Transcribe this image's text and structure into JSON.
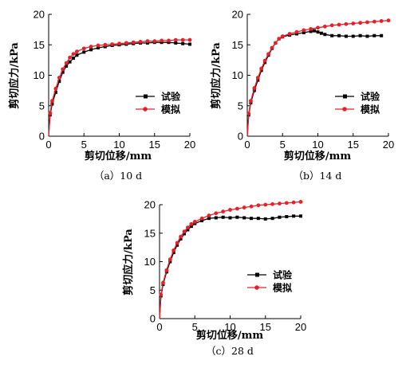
{
  "chart_data": [
    {
      "type": "line",
      "caption": "（a）10 d",
      "xlabel": "剪切位移/mm",
      "ylabel": "剪切应力/kPa",
      "xlim": [
        0,
        20
      ],
      "ylim": [
        0,
        20
      ],
      "xticks": [
        "0",
        "5",
        "10",
        "15",
        "20"
      ],
      "yticks": [
        "0",
        "5",
        "10",
        "15",
        "20"
      ],
      "legend_position": "center-right",
      "series": [
        {
          "name": "试验",
          "color": "#000000",
          "marker": "square",
          "x": [
            0,
            0.2,
            0.5,
            1,
            1.5,
            2,
            2.5,
            3,
            3.5,
            4,
            5,
            6,
            7,
            8,
            9,
            10,
            11,
            12,
            13,
            14,
            15,
            16,
            17,
            18,
            19,
            20
          ],
          "y": [
            0,
            3.5,
            5.3,
            7.2,
            9,
            10.5,
            11.5,
            12.2,
            12.8,
            13.3,
            13.8,
            14.2,
            14.5,
            14.7,
            14.9,
            15.0,
            15.1,
            15.2,
            15.3,
            15.3,
            15.4,
            15.4,
            15.4,
            15.3,
            15.2,
            15.1
          ]
        },
        {
          "name": "模拟",
          "color": "#e8202a",
          "marker": "circle",
          "x": [
            0,
            0.2,
            0.5,
            1,
            1.5,
            2,
            2.5,
            3,
            3.5,
            4,
            5,
            6,
            7,
            8,
            9,
            10,
            11,
            12,
            13,
            14,
            15,
            16,
            17,
            18,
            19,
            20
          ],
          "y": [
            0,
            3.8,
            5.8,
            7.8,
            9.6,
            11,
            12,
            12.9,
            13.5,
            13.9,
            14.4,
            14.7,
            14.9,
            15.0,
            15.1,
            15.2,
            15.3,
            15.4,
            15.5,
            15.6,
            15.6,
            15.7,
            15.7,
            15.8,
            15.8,
            15.8
          ]
        }
      ]
    },
    {
      "type": "line",
      "caption": "（b）14 d",
      "xlabel": "剪切位移/mm",
      "ylabel": "剪切应力/kPa",
      "xlim": [
        0,
        20
      ],
      "ylim": [
        0,
        20
      ],
      "xticks": [
        "0",
        "5",
        "10",
        "15",
        "20"
      ],
      "yticks": [
        "0",
        "5",
        "10",
        "15",
        "20"
      ],
      "legend_position": "center-right",
      "series": [
        {
          "name": "试验",
          "color": "#000000",
          "marker": "square",
          "x": [
            0,
            0.2,
            0.5,
            1,
            1.5,
            2,
            2.5,
            3,
            3.5,
            4,
            4.5,
            5,
            6,
            7,
            8,
            9,
            9.5,
            10,
            10.5,
            11,
            12,
            13,
            14,
            15,
            16,
            17,
            18,
            19
          ],
          "y": [
            0,
            3.5,
            5.5,
            7.5,
            9.2,
            10.8,
            12.1,
            13.3,
            14.4,
            15.3,
            16.0,
            16.3,
            16.6,
            16.8,
            17.0,
            17.2,
            17.3,
            17.1,
            16.9,
            16.7,
            16.5,
            16.5,
            16.4,
            16.4,
            16.5,
            16.4,
            16.5,
            16.5
          ]
        },
        {
          "name": "模拟",
          "color": "#e8202a",
          "marker": "circle",
          "x": [
            0,
            0.2,
            0.5,
            1,
            1.5,
            2,
            2.5,
            3,
            3.5,
            4,
            4.5,
            5,
            6,
            7,
            8,
            9,
            10,
            11,
            12,
            13,
            14,
            15,
            16,
            17,
            18,
            19,
            20
          ],
          "y": [
            0,
            3.7,
            5.8,
            7.9,
            9.6,
            11.1,
            12.4,
            13.5,
            14.5,
            15.3,
            16.0,
            16.4,
            16.8,
            17.1,
            17.4,
            17.6,
            17.8,
            18.0,
            18.2,
            18.3,
            18.4,
            18.5,
            18.6,
            18.7,
            18.8,
            18.9,
            19.0
          ]
        }
      ]
    },
    {
      "type": "line",
      "caption": "（c）28 d",
      "xlabel": "剪切位移/mm",
      "ylabel": "剪切应力/kPa",
      "xlim": [
        0,
        20
      ],
      "ylim": [
        0,
        20
      ],
      "xticks": [
        "0",
        "5",
        "10",
        "15",
        "20"
      ],
      "yticks": [
        "0",
        "5",
        "10",
        "15",
        "20"
      ],
      "legend_position": "center-right",
      "series": [
        {
          "name": "试验",
          "color": "#000000",
          "marker": "square",
          "x": [
            0,
            0.2,
            0.5,
            1,
            1.5,
            2,
            2.5,
            3,
            3.5,
            4,
            4.5,
            5,
            6,
            7,
            8,
            9,
            10,
            11,
            12,
            13,
            14,
            15,
            16,
            17,
            18,
            19,
            20
          ],
          "y": [
            0,
            4.0,
            6.0,
            8.2,
            10.0,
            11.6,
            12.9,
            14.0,
            14.9,
            15.6,
            16.2,
            16.7,
            17.2,
            17.6,
            17.7,
            17.8,
            17.7,
            17.8,
            17.7,
            17.6,
            17.6,
            17.5,
            17.6,
            17.8,
            17.9,
            18.0,
            18.0
          ]
        },
        {
          "name": "模拟",
          "color": "#e8202a",
          "marker": "circle",
          "x": [
            0,
            0.2,
            0.5,
            1,
            1.5,
            2,
            2.5,
            3,
            3.5,
            4,
            4.5,
            5,
            6,
            7,
            8,
            9,
            10,
            11,
            12,
            13,
            14,
            15,
            16,
            17,
            18,
            19,
            20
          ],
          "y": [
            0,
            4.2,
            6.3,
            8.5,
            10.4,
            12.0,
            13.3,
            14.4,
            15.3,
            16.0,
            16.6,
            17.0,
            17.6,
            18.1,
            18.5,
            18.8,
            19.1,
            19.3,
            19.5,
            19.7,
            19.9,
            20.0,
            20.1,
            20.2,
            20.3,
            20.4,
            20.5
          ]
        }
      ]
    }
  ]
}
